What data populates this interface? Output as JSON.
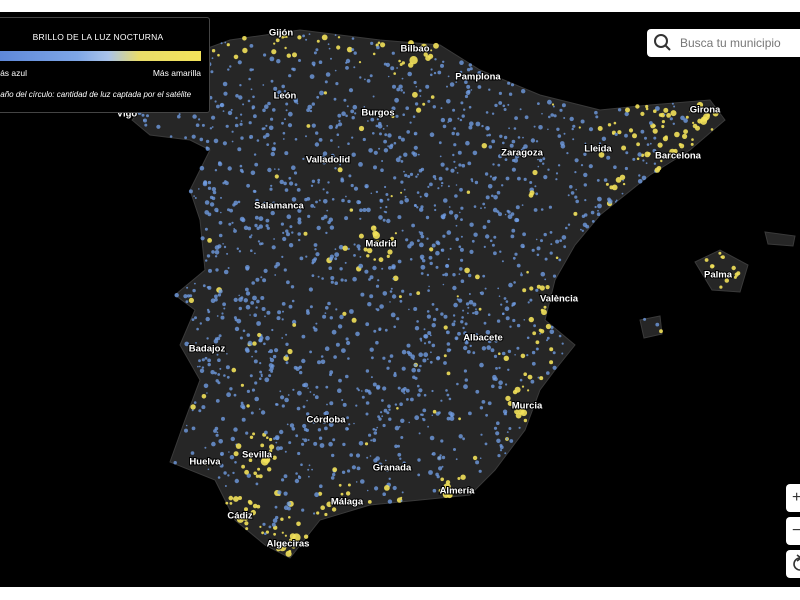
{
  "legend": {
    "title": "BRILLO DE LA LUZ NOCTURNA",
    "low_label": "Más azul",
    "high_label": "Más amarilla",
    "size_note": "Tamaño del círculo: cantidad de luz captada por el satélite"
  },
  "search": {
    "placeholder": "Busca tu municipio"
  },
  "controls": {
    "zoom_in": "+",
    "zoom_out": "−"
  },
  "cities": [
    "Gijón",
    "Bilbao",
    "Pamplona",
    "León",
    "Vigo",
    "Burgos",
    "Girona",
    "Valladolid",
    "Zaragoza",
    "Lleida",
    "Barcelona",
    "Salamanca",
    "Madrid",
    "Palma",
    "València",
    "Albacete",
    "Badajoz",
    "Murcia",
    "Córdoba",
    "Sevilla",
    "Huelva",
    "Granada",
    "Almería",
    "Cádiz",
    "Málaga",
    "Algeciras"
  ]
}
